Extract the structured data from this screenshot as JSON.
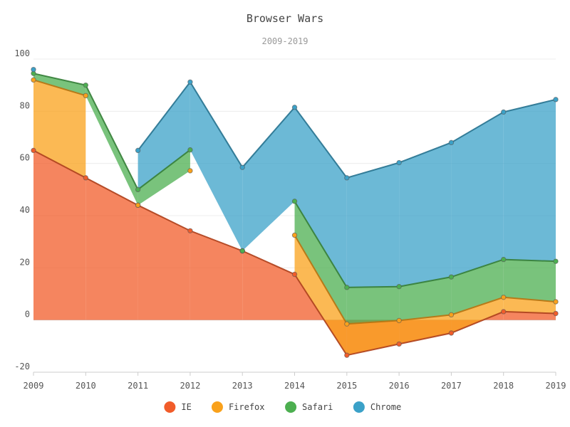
{
  "chart_data": {
    "type": "area",
    "title": "Browser Wars",
    "subtitle": "2009-2019",
    "x": [
      "2009",
      "2010",
      "2011",
      "2012",
      "2013",
      "2014",
      "2015",
      "2016",
      "2017",
      "2018",
      "2019"
    ],
    "ylim": [
      -20,
      100
    ],
    "yticks": [
      -20,
      0,
      20,
      40,
      60,
      80,
      100
    ],
    "grid": true,
    "legend_position": "bottom",
    "series": [
      {
        "name": "IE",
        "color": "#f15c2a",
        "values": [
          65,
          54.5,
          44,
          34.2,
          26.5,
          17.5,
          -13.5,
          -9.2,
          -5,
          3.2,
          2.5
        ]
      },
      {
        "name": "Firefox",
        "color": "#f9a11b",
        "values": [
          27,
          31.5,
          0,
          23,
          0,
          15,
          12,
          9,
          7,
          5.5,
          4.5
        ]
      },
      {
        "name": "Safari",
        "color": "#4caf50",
        "values": [
          2.5,
          4,
          6,
          8,
          0,
          13,
          14,
          13,
          14.5,
          14.5,
          15.5
        ]
      },
      {
        "name": "Chrome",
        "color": "#3ba1c8",
        "values": [
          1.5,
          null,
          15,
          26,
          32,
          36,
          42,
          47.5,
          51.5,
          56.5,
          62
        ]
      }
    ]
  }
}
